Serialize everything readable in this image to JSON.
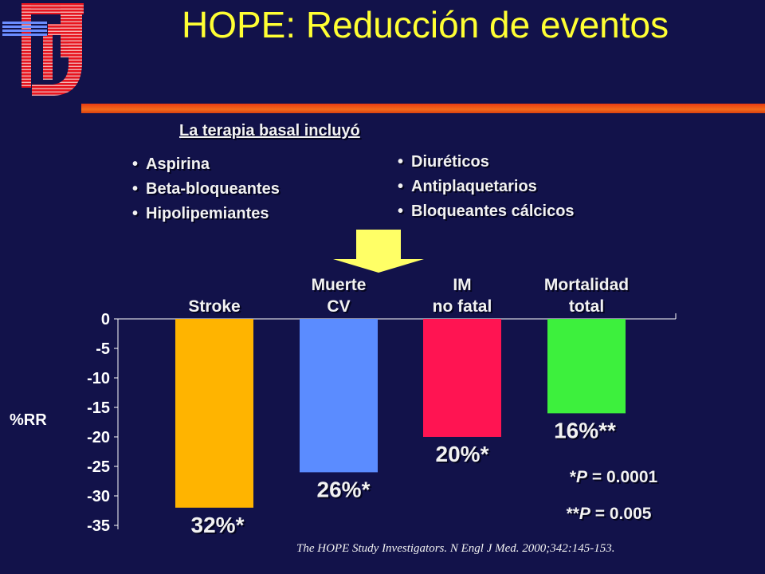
{
  "header": {
    "title": "HOPE: Reducción de eventos"
  },
  "therapy": {
    "heading": "La terapia basal incluyó",
    "left_items": [
      "Aspirina",
      "Beta-bloqueantes",
      "Hipolipemiantes"
    ],
    "right_items": [
      "Diuréticos",
      "Antiplaquetarios",
      "Bloqueantes cálcicos"
    ]
  },
  "colors": {
    "background": "#12124a",
    "title": "#ffff33",
    "arrow": "#ffff66"
  },
  "chart_data": {
    "type": "bar",
    "orientation": "vertical, negative values hanging from 0",
    "categories": [
      [
        "Stroke"
      ],
      [
        "Muerte",
        "CV"
      ],
      [
        "IM",
        "no fatal"
      ],
      [
        "Mortalidad",
        "total"
      ]
    ],
    "values": [
      -32,
      -26,
      -20,
      -16
    ],
    "data_labels": [
      "32%*",
      "26%*",
      "20%*",
      "16%**"
    ],
    "bar_colors": [
      "#ffb400",
      "#5b8cff",
      "#ff1452",
      "#3df03d"
    ],
    "ylabel": "%RR",
    "ylim": [
      -35,
      0
    ],
    "yticks": [
      "0",
      "-5",
      "-10",
      "-15",
      "-20",
      "-25",
      "-30",
      "-35"
    ],
    "grid": false,
    "annotations": [
      {
        "prefix": "*",
        "italic": "P",
        "text": " = 0.0001"
      },
      {
        "prefix": "**",
        "italic": "P",
        "text": " = 0.005"
      }
    ]
  },
  "footnote": "The HOPE Study Investigators. N Engl J Med. 2000;342:145-153."
}
